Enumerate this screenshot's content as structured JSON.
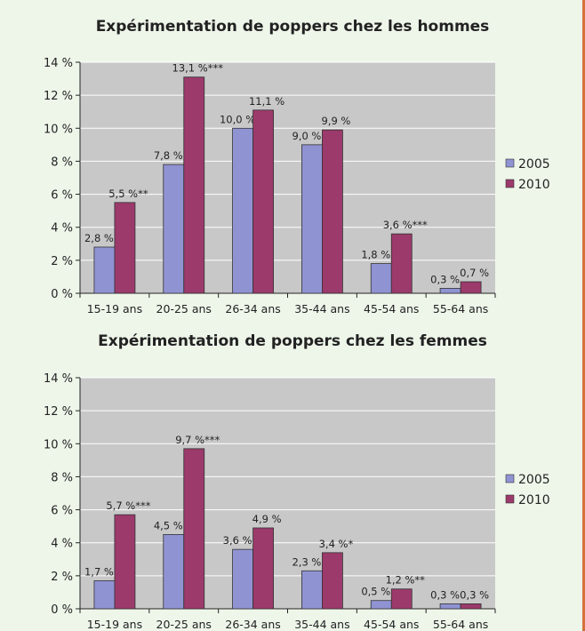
{
  "colors": {
    "series_2005": "#9093d2",
    "series_2010": "#9b3a6b",
    "plot_bg": "#c8c8c8",
    "gridline": "#ffffff",
    "frame": "#d4713a",
    "page_bg": "#eef6ea"
  },
  "chart_data": [
    {
      "type": "bar",
      "title": "Expérimentation de poppers chez les hommes",
      "categories": [
        "15-19 ans",
        "20-25 ans",
        "26-34 ans",
        "35-44 ans",
        "45-54 ans",
        "55-64 ans"
      ],
      "series": [
        {
          "name": "2005",
          "values": [
            2.8,
            7.8,
            10.0,
            9.0,
            1.8,
            0.3
          ],
          "labels": [
            "2,8 %",
            "7,8 %",
            "10,0 %",
            "9,0 %",
            "1,8 %",
            "0,3 %"
          ]
        },
        {
          "name": "2010",
          "values": [
            5.5,
            13.1,
            11.1,
            9.9,
            3.6,
            0.7
          ],
          "labels": [
            "5,5 %**",
            "13,1 %***",
            "11,1 %",
            "9,9 %",
            "3,6 %***",
            "0,7 %"
          ]
        }
      ],
      "ylim": [
        0,
        14
      ],
      "yticks": [
        "0 %",
        "2 %",
        "4 %",
        "6 %",
        "8 %",
        "10 %",
        "12 %",
        "14 %"
      ],
      "grid": true,
      "legend": "right"
    },
    {
      "type": "bar",
      "title": "Expérimentation de poppers chez les femmes",
      "categories": [
        "15-19 ans",
        "20-25 ans",
        "26-34 ans",
        "35-44 ans",
        "45-54 ans",
        "55-64 ans"
      ],
      "series": [
        {
          "name": "2005",
          "values": [
            1.7,
            4.5,
            3.6,
            2.3,
            0.5,
            0.3
          ],
          "labels": [
            "1,7 %",
            "4,5 %",
            "3,6 %",
            "2,3 %",
            "0,5 %",
            "0,3 %"
          ]
        },
        {
          "name": "2010",
          "values": [
            5.7,
            9.7,
            4.9,
            3.4,
            1.2,
            0.3
          ],
          "labels": [
            "5,7 %***",
            "9,7 %***",
            "4,9 %",
            "3,4 %*",
            "1,2 %**",
            "0,3 %"
          ]
        }
      ],
      "ylim": [
        0,
        14
      ],
      "yticks": [
        "0 %",
        "2 %",
        "4 %",
        "6 %",
        "8 %",
        "10 %",
        "12 %",
        "14 %"
      ],
      "grid": true,
      "legend": "right"
    }
  ]
}
